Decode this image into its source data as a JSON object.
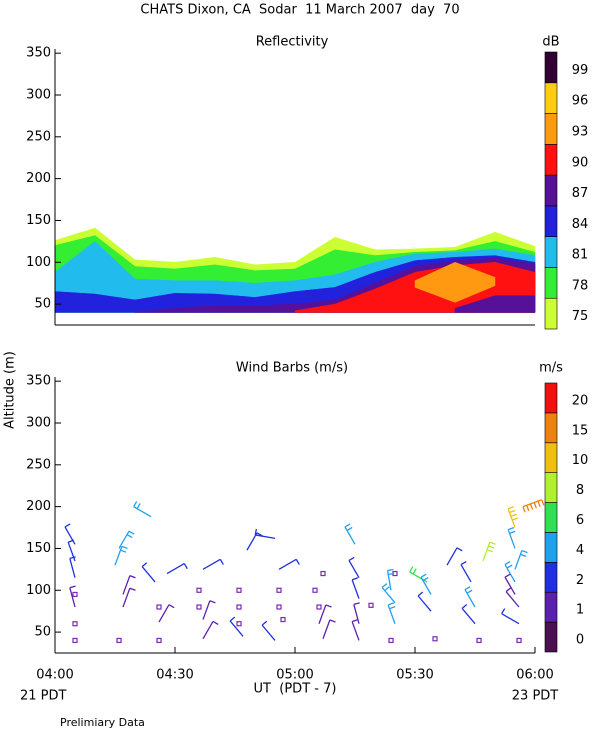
{
  "page": {
    "title": "CHATS Dixon, CA  Sodar  11 March 2007  day  70",
    "y_label": "Altitude (m)",
    "x_label": "UT  (PDT - 7)",
    "start_note": "21 PDT",
    "end_note": "23 PDT",
    "footnote": "Prelimiary Data"
  },
  "chart_data": [
    {
      "type": "contour",
      "title": "Reflectivity",
      "x": [
        0,
        10,
        20,
        30,
        40,
        50,
        60,
        70,
        80,
        90,
        100,
        110,
        120
      ],
      "xlim": [
        0,
        120
      ],
      "ylim": [
        25,
        355
      ],
      "yticks": [
        50,
        100,
        150,
        200,
        250,
        300,
        350
      ],
      "series": [
        {
          "color": "#ccff33",
          "base": [
            40,
            40,
            40,
            40,
            40,
            40,
            40,
            40,
            40,
            40,
            40,
            40,
            40
          ],
          "values": [
            126,
            141,
            103,
            100,
            106,
            97,
            100,
            130,
            115,
            116,
            118,
            136,
            119
          ]
        },
        {
          "color": "#33ee33",
          "base": [
            40,
            40,
            40,
            40,
            40,
            40,
            40,
            40,
            40,
            40,
            40,
            40,
            40
          ],
          "values": [
            120,
            132,
            95,
            92,
            97,
            90,
            92,
            115,
            108,
            112,
            114,
            125,
            112
          ]
        },
        {
          "color": "#22bbee",
          "base": [
            40,
            40,
            40,
            40,
            40,
            40,
            40,
            40,
            40,
            40,
            40,
            40,
            40
          ],
          "values": [
            88,
            125,
            80,
            78,
            78,
            75,
            78,
            85,
            100,
            110,
            112,
            116,
            108
          ]
        },
        {
          "color": "#2222dd",
          "base": [
            40,
            40,
            40,
            40,
            40,
            40,
            40,
            40,
            40,
            40,
            40,
            40,
            40
          ],
          "values": [
            65,
            62,
            55,
            63,
            62,
            58,
            65,
            70,
            88,
            102,
            106,
            108,
            100
          ]
        },
        {
          "color": "#551199",
          "base": [
            null,
            null,
            40,
            40,
            40,
            40,
            40,
            40,
            40,
            40,
            40,
            40,
            40
          ],
          "values": [
            null,
            null,
            40,
            45,
            48,
            48,
            50,
            55,
            75,
            95,
            102,
            105,
            98
          ]
        },
        {
          "color": "#ff1111",
          "base": [
            null,
            null,
            null,
            null,
            null,
            null,
            40,
            40,
            40,
            40,
            40,
            40,
            40
          ],
          "values": [
            null,
            null,
            null,
            null,
            null,
            null,
            42,
            50,
            68,
            88,
            96,
            100,
            88
          ]
        },
        {
          "color": "#ff9911",
          "base": [
            null,
            null,
            null,
            null,
            null,
            null,
            null,
            null,
            null,
            70,
            52,
            72,
            null
          ],
          "values": [
            null,
            null,
            null,
            null,
            null,
            null,
            null,
            null,
            null,
            78,
            100,
            82,
            null
          ]
        },
        {
          "color": "#551199",
          "base": [
            null,
            null,
            null,
            null,
            null,
            null,
            null,
            null,
            null,
            null,
            40,
            40,
            40
          ],
          "values": [
            null,
            null,
            null,
            null,
            null,
            null,
            null,
            null,
            null,
            null,
            45,
            60,
            60
          ]
        }
      ],
      "colorbar": {
        "title": "dB",
        "labels": [
          75,
          78,
          81,
          84,
          87,
          90,
          93,
          96,
          99
        ],
        "colors": [
          "#ccff33",
          "#33ee33",
          "#22bbee",
          "#2222dd",
          "#551199",
          "#ff1111",
          "#ff9911",
          "#ffcc11",
          "#330033"
        ]
      }
    },
    {
      "type": "barbs",
      "title": "Wind Barbs (m/s)",
      "xlim": [
        0,
        120
      ],
      "ylim": [
        25,
        355
      ],
      "yticks": [
        50,
        100,
        150,
        200,
        250,
        300,
        350
      ],
      "xticks": [
        {
          "value": 0,
          "label": "04:00"
        },
        {
          "value": 30,
          "label": "04:30"
        },
        {
          "value": 60,
          "label": "05:00"
        },
        {
          "value": 90,
          "label": "05:30"
        },
        {
          "value": 120,
          "label": "06:00"
        }
      ],
      "x": [
        5,
        5,
        5,
        5,
        5,
        5,
        5,
        16,
        15,
        17,
        17,
        16,
        24,
        25,
        26,
        26,
        26,
        28,
        37,
        36,
        36,
        37,
        37,
        46,
        46,
        46,
        47,
        48,
        55,
        56,
        56,
        56,
        57,
        55,
        65,
        66,
        67,
        66,
        67,
        75,
        76,
        76,
        79,
        76,
        76,
        85,
        84,
        85,
        85,
        84,
        93,
        94,
        94,
        95,
        98,
        104,
        105,
        105,
        106,
        107,
        117,
        115,
        115,
        115,
        115,
        115,
        116,
        116,
        116
      ],
      "y": [
        155,
        135,
        115,
        95,
        80,
        60,
        40,
        150,
        130,
        95,
        80,
        40,
        188,
        110,
        80,
        62,
        40,
        120,
        125,
        100,
        80,
        65,
        42,
        100,
        80,
        60,
        45,
        148,
        162,
        125,
        100,
        80,
        65,
        40,
        100,
        80,
        120,
        60,
        42,
        155,
        115,
        90,
        82,
        60,
        40,
        120,
        100,
        85,
        60,
        40,
        110,
        95,
        75,
        42,
        130,
        110,
        80,
        60,
        40,
        135,
        200,
        175,
        150,
        125,
        110,
        95,
        80,
        60,
        40
      ],
      "speed": [
        3,
        3,
        3,
        0.8,
        1.5,
        0.3,
        0.3,
        5,
        5,
        1.5,
        1.5,
        0.3,
        5,
        3,
        0.3,
        1.5,
        0.3,
        3,
        3,
        0.3,
        0.3,
        1.5,
        1.5,
        0.3,
        0.3,
        0.3,
        3,
        3,
        3,
        3,
        0.3,
        0.3,
        0.8,
        3,
        0.3,
        0.3,
        0.8,
        1.5,
        1.5,
        5,
        3,
        3,
        0.8,
        1.5,
        1.5,
        0.3,
        5,
        5,
        5,
        0.8,
        7,
        5,
        3,
        0.8,
        3,
        3,
        5,
        3,
        0.3,
        9,
        18,
        12,
        5,
        5,
        5,
        1.5,
        1.5,
        3,
        0.3
      ],
      "direction": [
        330,
        340,
        345,
        350,
        345,
        0,
        0,
        30,
        20,
        20,
        20,
        0,
        300,
        320,
        0,
        30,
        0,
        60,
        60,
        0,
        0,
        20,
        30,
        0,
        0,
        0,
        320,
        30,
        280,
        60,
        0,
        0,
        280,
        320,
        0,
        0,
        80,
        20,
        20,
        330,
        330,
        340,
        60,
        345,
        340,
        0,
        350,
        320,
        340,
        280,
        300,
        330,
        320,
        285,
        30,
        330,
        330,
        320,
        0,
        20,
        70,
        340,
        340,
        20,
        330,
        330,
        320,
        300,
        0
      ],
      "colorbar": {
        "title": "m/s",
        "labels": [
          0,
          1,
          2,
          4,
          6,
          8,
          10,
          15,
          20
        ],
        "colors": [
          "#4a1050",
          "#5a20b0",
          "#2030e0",
          "#20a0f0",
          "#30e050",
          "#b0f030",
          "#f0c010",
          "#f08010",
          "#f01010"
        ]
      }
    }
  ]
}
